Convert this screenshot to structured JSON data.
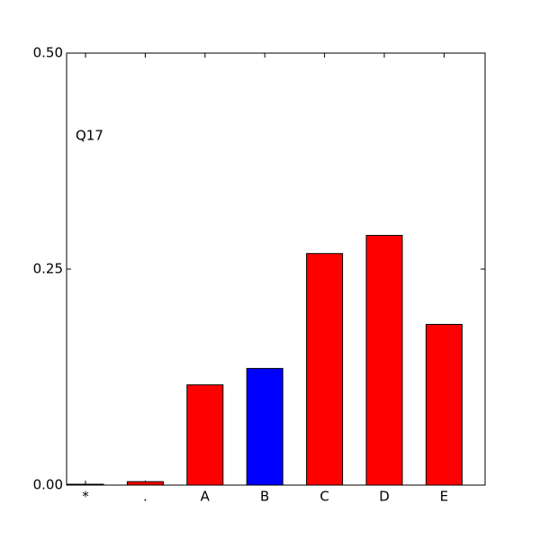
{
  "chart_data": {
    "type": "bar",
    "annotation": "Q17",
    "categories": [
      "*",
      ".",
      "A",
      "B",
      "C",
      "D",
      "E"
    ],
    "values": [
      0.001,
      0.004,
      0.116,
      0.135,
      0.268,
      0.289,
      0.186
    ],
    "colors": [
      "#ff0000",
      "#ff0000",
      "#ff0000",
      "#0000ff",
      "#ff0000",
      "#ff0000",
      "#ff0000"
    ],
    "ylim": [
      0,
      0.5
    ],
    "yticks": [
      {
        "value": 0,
        "label": "0.00"
      },
      {
        "value": 0.25,
        "label": "0.25"
      },
      {
        "value": 0.5,
        "label": "0.50"
      }
    ],
    "grid": false
  }
}
